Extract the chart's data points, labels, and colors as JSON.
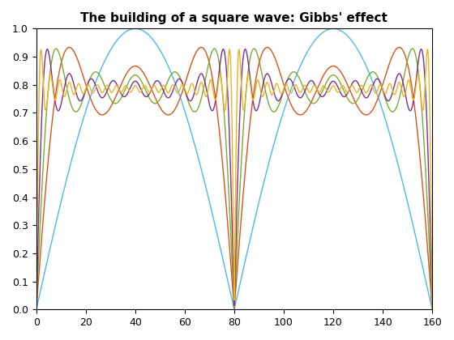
{
  "title": "The building of a square wave: Gibbs' effect",
  "xlim": [
    0,
    160
  ],
  "ylim": [
    0,
    1
  ],
  "xticks": [
    0,
    20,
    40,
    60,
    80,
    100,
    120,
    140,
    160
  ],
  "yticks": [
    0,
    0.1,
    0.2,
    0.3,
    0.4,
    0.5,
    0.6,
    0.7,
    0.8,
    0.9,
    1.0
  ],
  "line_colors": [
    "#4db8f0",
    "#d95319",
    "#77ac30",
    "#7e2f8e",
    "#edb120"
  ],
  "n_harmonics": [
    1,
    3,
    5,
    9,
    21
  ],
  "N": 2000,
  "period": 160,
  "half_period": 80
}
